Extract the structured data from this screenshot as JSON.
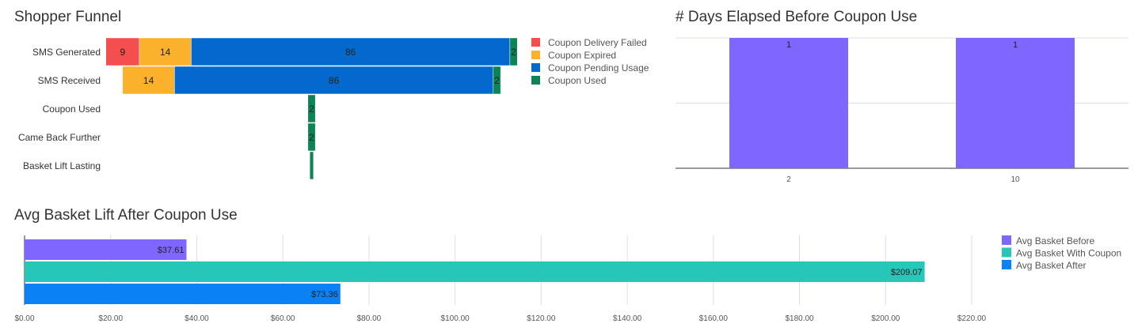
{
  "chart_data": [
    {
      "type": "bar",
      "subtype": "funnel-stacked",
      "title": "Shopper Funnel",
      "categories": [
        "SMS Generated",
        "SMS Received",
        "Coupon Used",
        "Came Back Further",
        "Basket Lift Lasting"
      ],
      "series": [
        {
          "name": "Coupon Delivery Failed",
          "color": "#f44e4e",
          "values": [
            9,
            0,
            0,
            0,
            0
          ]
        },
        {
          "name": "Coupon Expired",
          "color": "#fbb12c",
          "values": [
            14,
            14,
            0,
            0,
            0
          ]
        },
        {
          "name": "Coupon Pending Usage",
          "color": "#0369cc",
          "values": [
            86,
            86,
            0,
            0,
            0
          ]
        },
        {
          "name": "Coupon Used",
          "color": "#0d8455",
          "values": [
            2,
            2,
            2,
            2,
            1
          ]
        }
      ],
      "show_labels": [
        [
          true,
          true,
          true,
          true
        ],
        [
          false,
          true,
          true,
          true
        ],
        [
          false,
          false,
          false,
          true
        ],
        [
          false,
          false,
          false,
          true
        ],
        [
          false,
          false,
          false,
          false
        ]
      ],
      "legend": "right"
    },
    {
      "type": "bar",
      "title": "# Days Elapsed Before Coupon Use",
      "categories": [
        "2",
        "10"
      ],
      "values": [
        1,
        1
      ],
      "color": "#7f66ff",
      "ylim": [
        0,
        1
      ],
      "grid": true
    },
    {
      "type": "bar",
      "orientation": "horizontal",
      "title": "Avg Basket Lift After Coupon Use",
      "series": [
        {
          "name": "Avg Basket Before",
          "value": 37.61,
          "label": "$37.61",
          "color": "#7f66ff"
        },
        {
          "name": "Avg Basket With Coupon",
          "value": 209.07,
          "label": "$209.07",
          "color": "#26c7b9"
        },
        {
          "name": "Avg Basket After",
          "value": 73.36,
          "label": "$73.36",
          "color": "#0a82f5"
        }
      ],
      "xticks": [
        "$0.00",
        "$20.00",
        "$40.00",
        "$60.00",
        "$80.00",
        "$100.00",
        "$120.00",
        "$140.00",
        "$160.00",
        "$180.00",
        "$200.00",
        "$220.00"
      ],
      "xlim": [
        0,
        220
      ],
      "grid": true,
      "legend": "right"
    }
  ]
}
